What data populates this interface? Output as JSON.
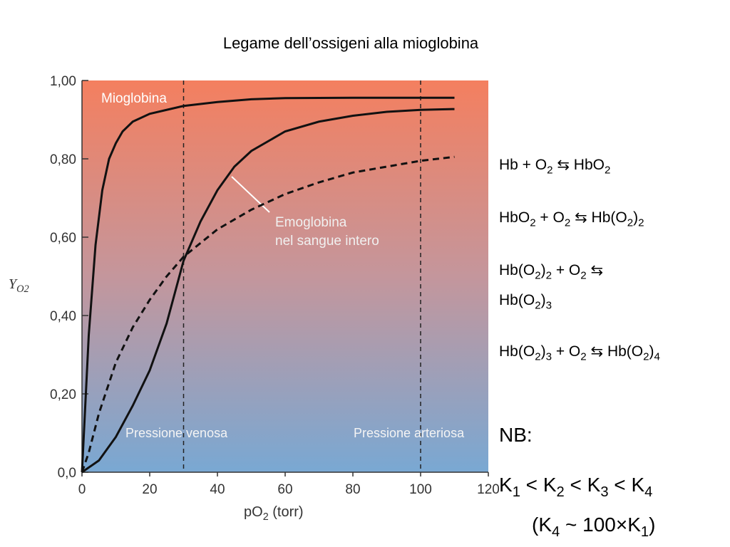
{
  "chart_data": {
    "type": "line",
    "title": "Legame dell’ossigeni alla mioglobina",
    "xlabel": [
      {
        "t": "p"
      },
      {
        "t": "O"
      },
      {
        "t": "2",
        "sub": true
      },
      {
        "t": " (torr)"
      }
    ],
    "ylabel": [
      {
        "t": "Y"
      },
      {
        "t": "O2",
        "sub": true
      }
    ],
    "xlim": [
      0,
      120
    ],
    "xticks": [
      0,
      20,
      40,
      60,
      80,
      100,
      120
    ],
    "ylim": [
      0,
      1
    ],
    "yticks": [
      {
        "value": 0,
        "label": "0,0"
      },
      {
        "value": 0.2,
        "label": "0,20"
      },
      {
        "value": 0.4,
        "label": "0,40"
      },
      {
        "value": 0.6,
        "label": "0,60"
      },
      {
        "value": 0.8,
        "label": "0,80"
      },
      {
        "value": 1,
        "label": "1,00"
      }
    ],
    "series": [
      {
        "name": [
          "Mioglobina"
        ],
        "color": "#111111",
        "dash": false,
        "x": [
          0,
          2,
          4,
          6,
          8,
          10,
          12,
          15,
          20,
          25,
          30,
          40,
          50,
          60,
          80,
          100,
          110
        ],
        "values": [
          0,
          0.35,
          0.58,
          0.72,
          0.8,
          0.84,
          0.87,
          0.895,
          0.915,
          0.925,
          0.935,
          0.945,
          0.952,
          0.955,
          0.956,
          0.956,
          0.956
        ]
      },
      {
        "name": [
          "Emoglobina",
          "nel sangue intero"
        ],
        "color": "#111111",
        "dash": false,
        "x": [
          0,
          5,
          10,
          15,
          20,
          25,
          30,
          35,
          40,
          45,
          50,
          60,
          70,
          80,
          90,
          100,
          110
        ],
        "values": [
          0,
          0.03,
          0.09,
          0.17,
          0.26,
          0.38,
          0.54,
          0.64,
          0.72,
          0.78,
          0.82,
          0.87,
          0.895,
          0.91,
          0.92,
          0.925,
          0.927
        ]
      },
      {
        "color": "#111111",
        "dash": true,
        "x": [
          0,
          2,
          5,
          10,
          15,
          20,
          25,
          30,
          40,
          50,
          60,
          70,
          80,
          90,
          100,
          110
        ],
        "values": [
          0,
          0.05,
          0.15,
          0.28,
          0.37,
          0.44,
          0.5,
          0.55,
          0.62,
          0.67,
          0.71,
          0.74,
          0.765,
          0.78,
          0.795,
          0.805
        ]
      }
    ],
    "vlines": [
      {
        "x": 30,
        "label": "Pressione venosa"
      },
      {
        "x": 100,
        "label": "Pressione arteriosa"
      }
    ]
  },
  "notes": [
    {
      "parts": [
        {
          "t": "Hb + O"
        },
        {
          "t": "2",
          "sub": true
        },
        {
          "t": " ⇆ HbO"
        },
        {
          "t": "2",
          "sub": true
        }
      ]
    },
    {
      "parts": [
        {
          "t": "HbO"
        },
        {
          "t": "2",
          "sub": true
        },
        {
          "t": " + O"
        },
        {
          "t": "2",
          "sub": true
        },
        {
          "t": " ⇆ Hb(O"
        },
        {
          "t": "2",
          "sub": true
        },
        {
          "t": ")"
        },
        {
          "t": "2",
          "sub": true
        }
      ]
    },
    {
      "parts": [
        {
          "t": "Hb(O"
        },
        {
          "t": "2",
          "sub": true
        },
        {
          "t": ")"
        },
        {
          "t": "2",
          "sub": true
        },
        {
          "t": " + O"
        },
        {
          "t": "2",
          "sub": true
        },
        {
          "t": " ⇆"
        }
      ]
    },
    {
      "parts": [
        {
          "t": "Hb(O"
        },
        {
          "t": "2",
          "sub": true
        },
        {
          "t": ")"
        },
        {
          "t": "3",
          "sub": true
        }
      ]
    },
    {
      "parts": [
        {
          "t": "Hb(O"
        },
        {
          "t": "2",
          "sub": true
        },
        {
          "t": ")"
        },
        {
          "t": "3",
          "sub": true
        },
        {
          "t": " + O"
        },
        {
          "t": "2",
          "sub": true
        },
        {
          "t": " ⇆ Hb(O"
        },
        {
          "t": "2",
          "sub": true
        },
        {
          "t": ")"
        },
        {
          "t": "4",
          "sub": true
        }
      ]
    },
    {
      "parts": [
        {
          "t": "NB:"
        }
      ]
    },
    {
      "parts": [
        {
          "t": "K"
        },
        {
          "t": "1",
          "sub": true
        },
        {
          "t": " < K"
        },
        {
          "t": "2",
          "sub": true
        },
        {
          "t": " < K"
        },
        {
          "t": "3",
          "sub": true
        },
        {
          "t": " < K"
        },
        {
          "t": "4",
          "sub": true
        }
      ]
    },
    {
      "parts": [
        {
          "t": "(K"
        },
        {
          "t": "4",
          "sub": true
        },
        {
          "t": " ~ 100×K"
        },
        {
          "t": "1",
          "sub": true
        },
        {
          "t": ")"
        }
      ]
    }
  ]
}
